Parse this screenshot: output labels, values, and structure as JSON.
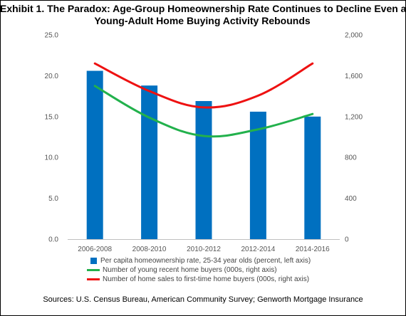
{
  "chart_data": {
    "type": "bar",
    "title": "Exhibit 1. The Paradox: Age-Group Homeownership Rate Continues to Decline Even as Young-Adult Home Buying Activity Rebounds",
    "title_line1": "Exhibit 1. The Paradox: Age-Group Homeownership Rate Continues to Decline Even as",
    "title_line2": "Young-Adult Home Buying Activity Rebounds",
    "categories": [
      "2006-2008",
      "2008-2010",
      "2010-2012",
      "2012-2014",
      "2014-2016"
    ],
    "left_axis": {
      "ylim": [
        0,
        25
      ],
      "ticks": [
        "0.0",
        "5.0",
        "10.0",
        "15.0",
        "20.0",
        "25.0"
      ]
    },
    "right_axis": {
      "ylim": [
        0,
        2000
      ],
      "ticks": [
        "0",
        "400",
        "800",
        "1,200",
        "1,600",
        "2,000"
      ]
    },
    "series": [
      {
        "name": "Per capita homeownership rate, 25-34 year olds (percent, left axis)",
        "type": "bar",
        "axis": "left",
        "color": "#0070C0",
        "values": [
          20.6,
          18.8,
          16.9,
          15.6,
          15.0
        ]
      },
      {
        "name": "Number of young recent home buyers (000s, right axis)",
        "type": "line",
        "axis": "right",
        "color": "#22B14C",
        "values": [
          1500,
          1190,
          1010,
          1075,
          1225
        ]
      },
      {
        "name": "Number of home sales to first-time home buyers (000s, right axis)",
        "type": "line",
        "axis": "right",
        "color": "#EE1111",
        "values": [
          1720,
          1450,
          1290,
          1405,
          1720
        ]
      }
    ],
    "grid": false,
    "legend_position": "bottom"
  },
  "source": "Sources: U.S. Census Bureau, American Community Survey; Genworth Mortgage Insurance"
}
